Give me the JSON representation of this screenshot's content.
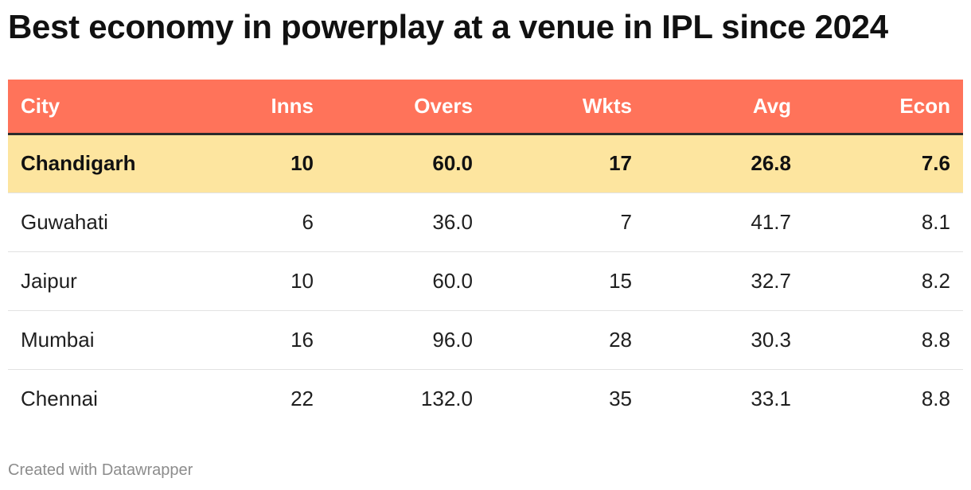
{
  "title": "Best economy in powerplay at a venue in IPL since 2024",
  "footer": "Created with Datawrapper",
  "colors": {
    "header_background": "#ff735a",
    "highlight_background": "#fde59f",
    "header_divider": "#2b2b2b"
  },
  "chart_data": {
    "type": "table",
    "title": "Best economy in powerplay at a venue in IPL since 2024",
    "columns": [
      "City",
      "Inns",
      "Overs",
      "Wkts",
      "Avg",
      "Econ"
    ],
    "rows": [
      {
        "City": "Chandigarh",
        "Inns": "10",
        "Overs": "60.0",
        "Wkts": "17",
        "Avg": "26.8",
        "Econ": "7.6",
        "highlighted": true
      },
      {
        "City": "Guwahati",
        "Inns": "6",
        "Overs": "36.0",
        "Wkts": "7",
        "Avg": "41.7",
        "Econ": "8.1",
        "highlighted": false
      },
      {
        "City": "Jaipur",
        "Inns": "10",
        "Overs": "60.0",
        "Wkts": "15",
        "Avg": "32.7",
        "Econ": "8.2",
        "highlighted": false
      },
      {
        "City": "Mumbai",
        "Inns": "16",
        "Overs": "96.0",
        "Wkts": "28",
        "Avg": "30.3",
        "Econ": "8.8",
        "highlighted": false
      },
      {
        "City": "Chennai",
        "Inns": "22",
        "Overs": "132.0",
        "Wkts": "35",
        "Avg": "33.1",
        "Econ": "8.8",
        "highlighted": false
      }
    ]
  }
}
